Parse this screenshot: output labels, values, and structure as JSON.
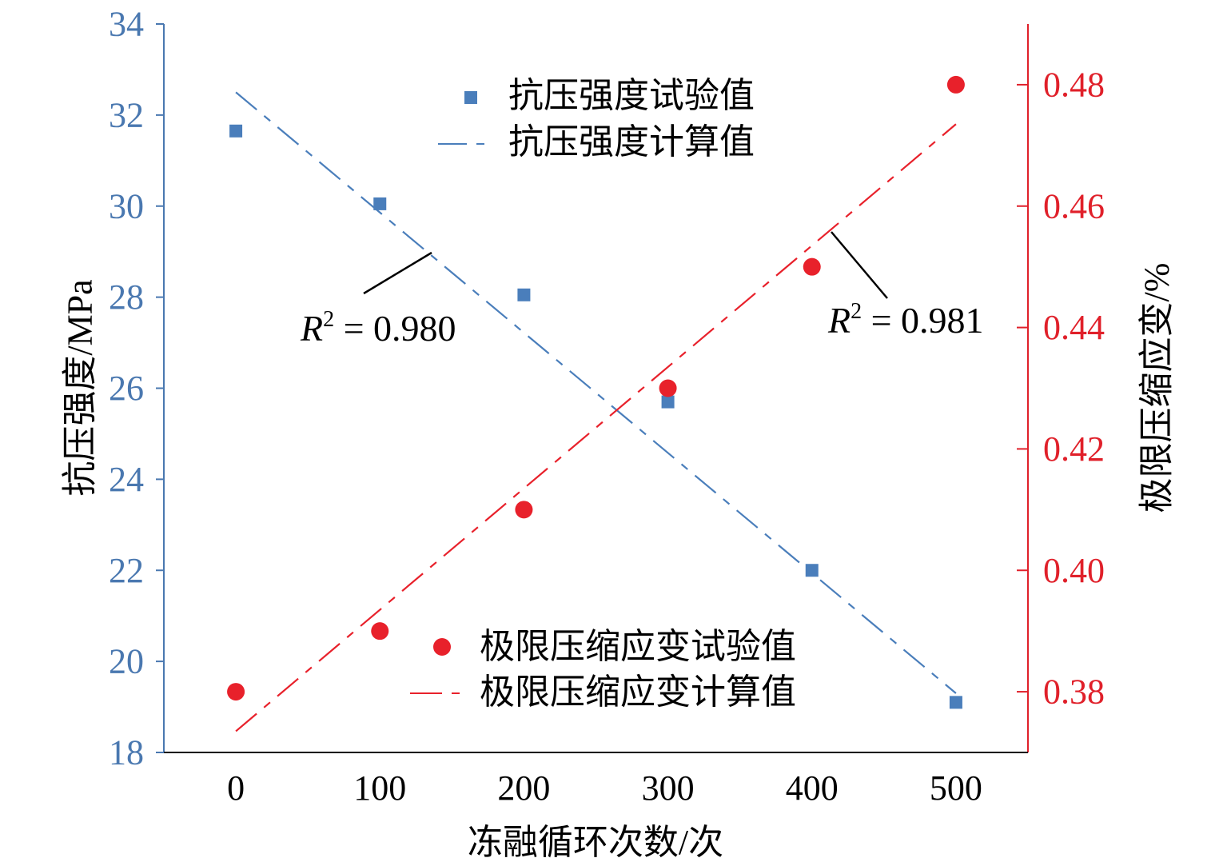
{
  "colors": {
    "left_axis": "#4a78b0",
    "right_axis": "#e0202a",
    "axis_line": "#000000",
    "strength_marker": "#4a7ebb",
    "strain_marker": "#e8212b",
    "annotation": "#000000"
  },
  "chart_data": {
    "type": "scatter",
    "xlabel": "冻融循环次数/次",
    "ylabel_left": "抗压强度/MPa",
    "ylabel_right": "极限压缩应变/%",
    "x_ticks": [
      "0",
      "100",
      "200",
      "300",
      "400",
      "500"
    ],
    "xlim": [
      -50,
      550
    ],
    "y_left_ticks": [
      "18",
      "20",
      "22",
      "24",
      "26",
      "28",
      "30",
      "32",
      "34"
    ],
    "ylim_left": [
      18,
      34
    ],
    "y_right_ticks": [
      "0.38",
      "0.40",
      "0.42",
      "0.44",
      "0.46",
      "0.48"
    ],
    "ylim_right": [
      0.37,
      0.49
    ],
    "grid": false,
    "series": [
      {
        "name": "抗压强度试验值",
        "axis": "left",
        "kind": "scatter",
        "marker": "square",
        "color": "#4a7ebb",
        "x": [
          0,
          100,
          200,
          300,
          400,
          500
        ],
        "y": [
          31.65,
          30.05,
          28.05,
          25.7,
          22.0,
          19.1
        ]
      },
      {
        "name": "抗压强度计算值",
        "axis": "left",
        "kind": "line",
        "dash": "long-short",
        "color": "#4a7ebb",
        "x": [
          0,
          500
        ],
        "y": [
          32.5,
          19.3
        ]
      },
      {
        "name": "极限压缩应变试验值",
        "axis": "right",
        "kind": "scatter",
        "marker": "circle",
        "color": "#e8212b",
        "x": [
          0,
          100,
          200,
          300,
          400,
          500
        ],
        "y": [
          0.38,
          0.39,
          0.41,
          0.43,
          0.45,
          0.48
        ]
      },
      {
        "name": "极限压缩应变计算值",
        "axis": "right",
        "kind": "line",
        "dash": "long-short",
        "color": "#e8212b",
        "x": [
          0,
          500
        ],
        "y": [
          0.3735,
          0.4735
        ]
      }
    ],
    "legend_top": {
      "position": "top-center",
      "entries": [
        "抗压强度试验值",
        "抗压强度计算值"
      ]
    },
    "legend_bottom": {
      "position": "bottom-center",
      "entries": [
        "极限压缩应变试验值",
        "极限压缩应变计算值"
      ]
    },
    "annotations": [
      {
        "var": "R",
        "sup": "2",
        "eq": " = 0.980",
        "series": "抗压强度计算值"
      },
      {
        "var": "R",
        "sup": "2",
        "eq": " = 0.981",
        "series": "极限压缩应变计算值"
      }
    ]
  }
}
